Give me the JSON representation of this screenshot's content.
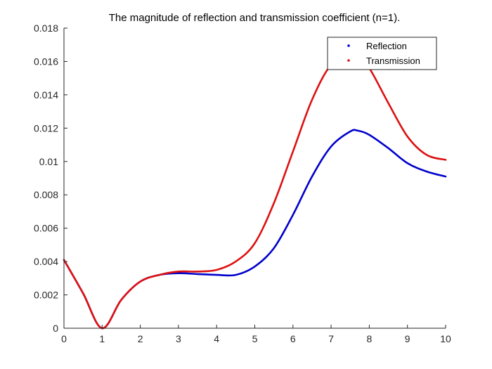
{
  "chart_data": {
    "type": "line",
    "title": "The magnitude of reflection and transmission coefficient (n=1).",
    "xlabel": "",
    "ylabel": "",
    "xlim": [
      0,
      10
    ],
    "ylim": [
      0,
      0.018
    ],
    "x_ticks": [
      "0",
      "1",
      "2",
      "3",
      "4",
      "5",
      "6",
      "7",
      "8",
      "9",
      "10"
    ],
    "y_ticks": [
      "0",
      "0.002",
      "0.004",
      "0.006",
      "0.008",
      "0.01",
      "0.012",
      "0.014",
      "0.016",
      "0.018"
    ],
    "grid": false,
    "legend_position": "top-right",
    "x": [
      0,
      0.5,
      1,
      1.5,
      2,
      2.5,
      3,
      3.5,
      4,
      4.5,
      5,
      5.5,
      6,
      6.5,
      7,
      7.5,
      7.7,
      8,
      8.5,
      9,
      9.5,
      10
    ],
    "series": [
      {
        "name": "Reflection",
        "color": "#0000cc",
        "values": [
          0.0041,
          0.0021,
          0.0,
          0.0017,
          0.0028,
          0.0032,
          0.0033,
          0.00325,
          0.0032,
          0.0032,
          0.0037,
          0.0048,
          0.0068,
          0.0091,
          0.0109,
          0.0118,
          0.01185,
          0.0116,
          0.0108,
          0.0099,
          0.0094,
          0.0091
        ]
      },
      {
        "name": "Transmission",
        "color": "#dd1111",
        "values": [
          0.0041,
          0.0021,
          0.0,
          0.0017,
          0.0028,
          0.0032,
          0.0034,
          0.0034,
          0.0035,
          0.004,
          0.0051,
          0.0075,
          0.0106,
          0.0137,
          0.0158,
          0.0163,
          0.0162,
          0.0156,
          0.0135,
          0.0115,
          0.0104,
          0.0101
        ]
      }
    ]
  }
}
